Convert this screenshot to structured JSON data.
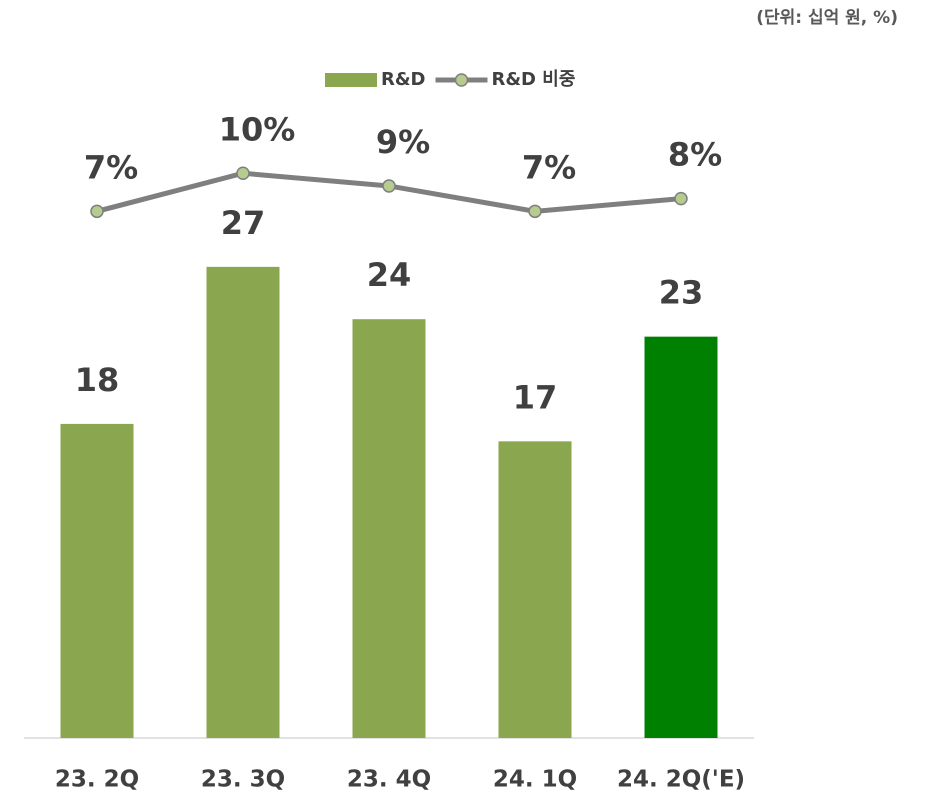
{
  "chart_data": {
    "type": "bar_line",
    "subtitle": "(단위: 십억 원, %)",
    "categories": [
      "23. 2Q",
      "23. 3Q",
      "23. 4Q",
      "24. 1Q",
      "24. 2Q('E)"
    ],
    "series": [
      {
        "name": "R&D",
        "type": "bar",
        "color": "#8aa64e",
        "colors": [
          "#8aa64e",
          "#8aa64e",
          "#8aa64e",
          "#8aa64e",
          "#008000"
        ],
        "values": [
          18,
          27,
          24,
          17,
          23
        ]
      },
      {
        "name": "R&D 비중",
        "type": "line",
        "axis": "y2",
        "color": "#7f7f7f",
        "marker_color": "#b5cc8e",
        "values": [
          7,
          10,
          9,
          7,
          8
        ],
        "value_labels": [
          "7%",
          "10%",
          "9%",
          "7%",
          "8%"
        ]
      }
    ],
    "ylim": [
      0,
      40
    ],
    "y2lim": [
      -34.5,
      20.5
    ],
    "legend": "top"
  }
}
